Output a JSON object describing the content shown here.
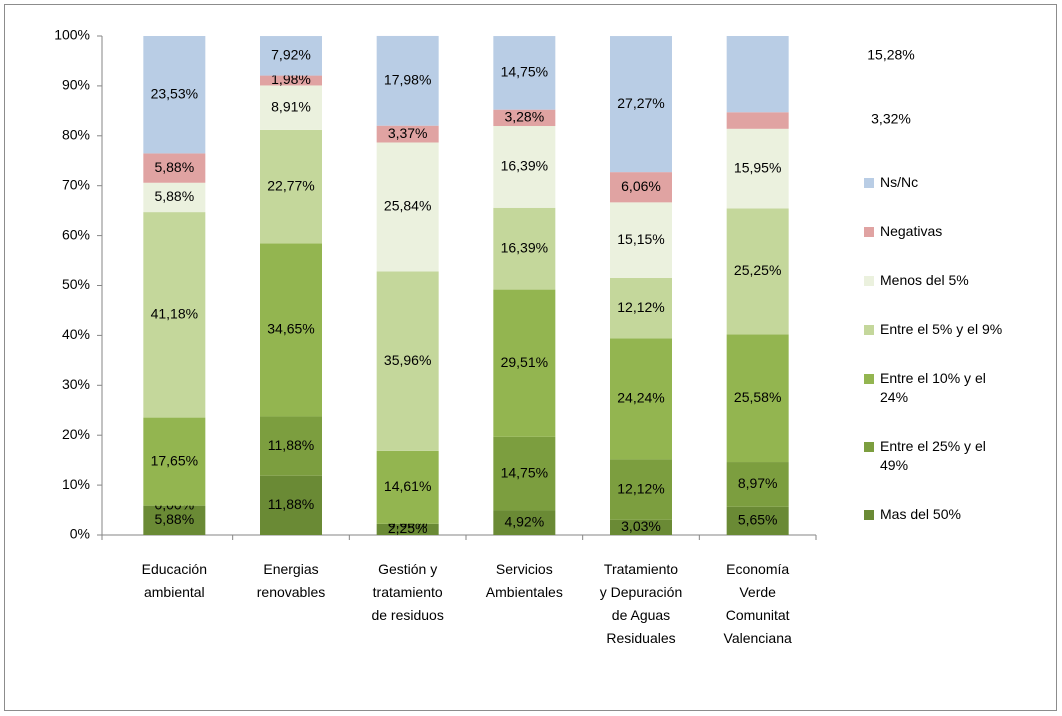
{
  "chart_data": {
    "type": "stacked_bar",
    "categories": [
      "Educación ambiental",
      "Energias renovables",
      "Gestión y tratamiento de residuos",
      "Servicios Ambientales",
      "Tratamiento y Depuración de Aguas Residuales",
      "Economía Verde Comunitat Valenciana"
    ],
    "series": [
      {
        "name": "Mas del 50%",
        "color": "#6a8a35",
        "values": [
          5.88,
          11.88,
          2.25,
          4.92,
          3.03,
          5.65
        ],
        "value_labels": [
          "5,88%",
          "11,88%",
          "2,25%",
          "4,92%",
          "3,03%",
          "5,65%"
        ]
      },
      {
        "name": "Entre el 25% y el 49%",
        "color": "#7c9e3f",
        "values": [
          0.0,
          11.88,
          0.0,
          14.75,
          12.12,
          8.97
        ],
        "value_labels": [
          "0,00%",
          "11,88%",
          "0,00%",
          "14,75%",
          "12,12%",
          "8,97%"
        ]
      },
      {
        "name": "Entre el 10% y el 24%",
        "color": "#93b550",
        "values": [
          17.65,
          34.65,
          14.61,
          29.51,
          24.24,
          25.58
        ],
        "value_labels": [
          "17,65%",
          "34,65%",
          "14,61%",
          "29,51%",
          "24,24%",
          "25,58%"
        ]
      },
      {
        "name": "Entre el 5% y el 9%",
        "color": "#c4d79b",
        "values": [
          41.18,
          22.77,
          35.96,
          16.39,
          12.12,
          25.25
        ],
        "value_labels": [
          "41,18%",
          "22,77%",
          "35,96%",
          "16,39%",
          "12,12%",
          "25,25%"
        ]
      },
      {
        "name": "Menos del 5%",
        "color": "#ebf1de",
        "values": [
          5.88,
          8.91,
          25.84,
          16.39,
          15.15,
          15.95
        ],
        "value_labels": [
          "5,88%",
          "8,91%",
          "25,84%",
          "16,39%",
          "15,15%",
          "15,95%"
        ]
      },
      {
        "name": "Negativas",
        "color": "#e0a3a2",
        "values": [
          5.88,
          1.98,
          3.37,
          3.28,
          6.06,
          3.32
        ],
        "value_labels": [
          "5,88%",
          "1,98%",
          "3,37%",
          "3,28%",
          "6,06%",
          "3,32%"
        ]
      },
      {
        "name": "Ns/Nc",
        "color": "#b9cde5",
        "values": [
          23.53,
          7.92,
          17.98,
          14.75,
          27.27,
          15.28
        ],
        "value_labels": [
          "23,53%",
          "7,92%",
          "17,98%",
          "14,75%",
          "27,27%",
          "15,28%"
        ]
      }
    ],
    "ylim": [
      0,
      100
    ],
    "yticks": [
      {
        "value": 0,
        "label": "0%"
      },
      {
        "value": 10,
        "label": "10%"
      },
      {
        "value": 20,
        "label": "20%"
      },
      {
        "value": 30,
        "label": "30%"
      },
      {
        "value": 40,
        "label": "40%"
      },
      {
        "value": 50,
        "label": "50%"
      },
      {
        "value": 60,
        "label": "60%"
      },
      {
        "value": 70,
        "label": "70%"
      },
      {
        "value": 80,
        "label": "80%"
      },
      {
        "value": 90,
        "label": "90%"
      },
      {
        "value": 100,
        "label": "100%"
      }
    ],
    "grid": false,
    "legend": "right"
  }
}
